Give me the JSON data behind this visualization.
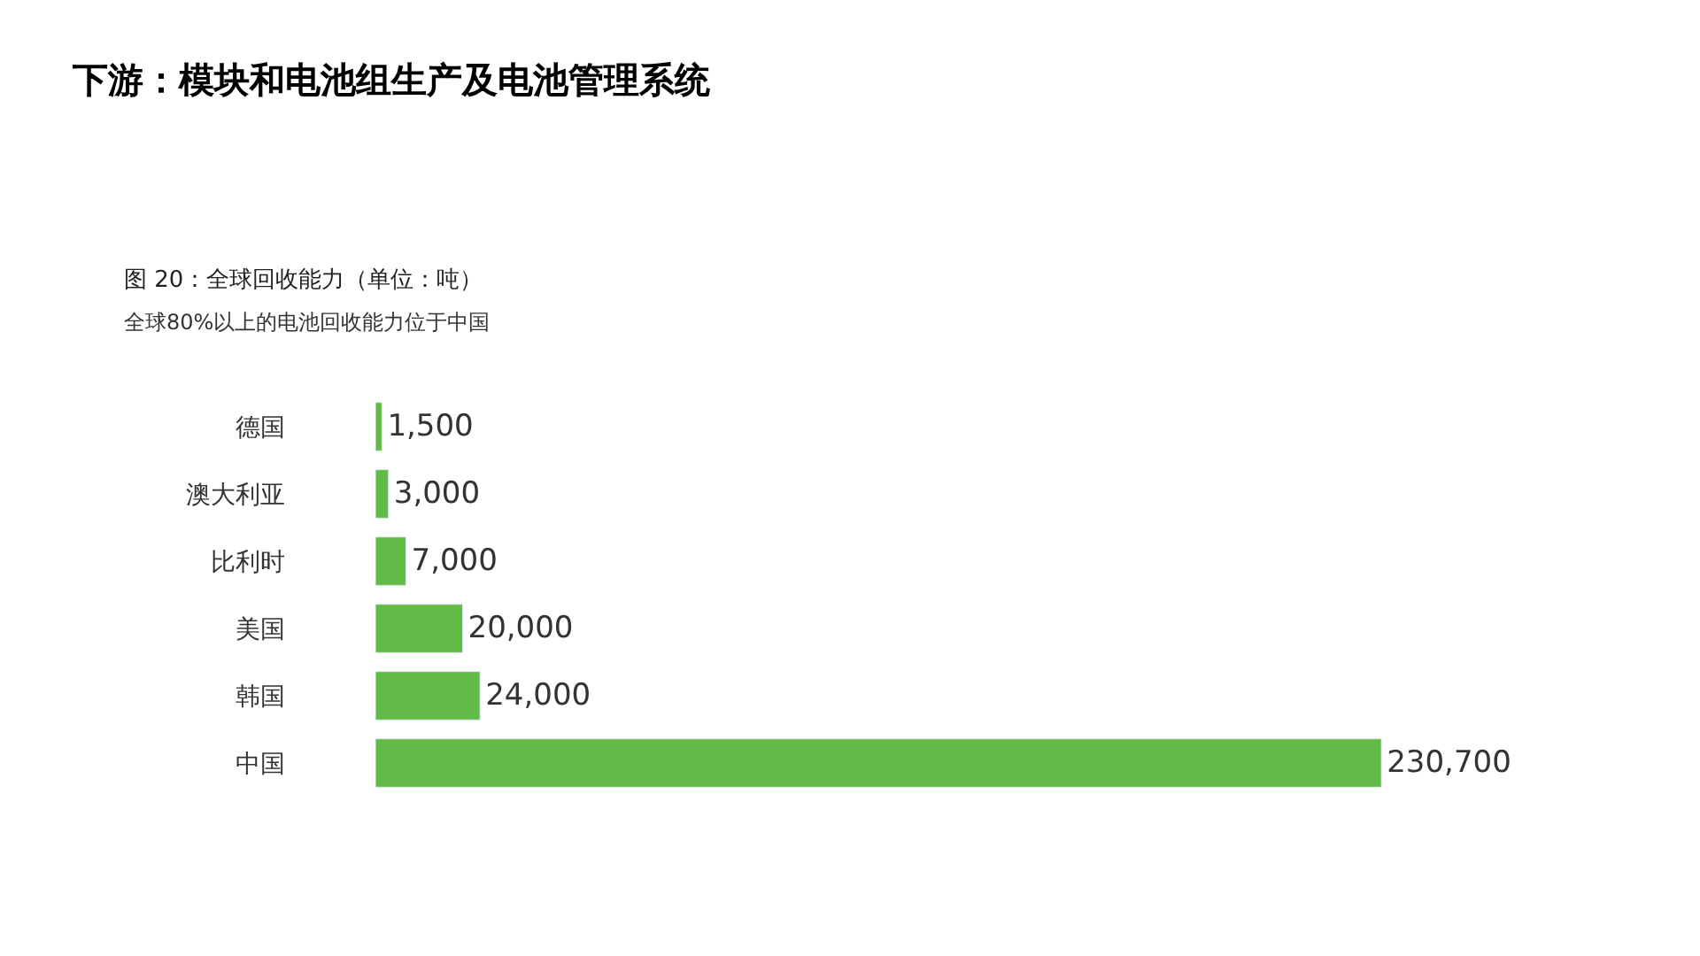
{
  "chart_data": {
    "type": "bar",
    "orientation": "horizontal",
    "title": "下游：模块和电池组生产及电池管理系统",
    "subtitle": "图 20：全球回收能力（单位：吨）",
    "annotations": [
      "全球80%以上的电池回收能力位于中国"
    ],
    "categories": [
      "德国",
      "澳大利亚",
      "比利时",
      "美国",
      "韩国",
      "中国"
    ],
    "values": [
      1500,
      3000,
      7000,
      20000,
      24000,
      230700
    ],
    "value_labels": [
      "1,500",
      "3,000",
      "7,000",
      "20,000",
      "24,000",
      "230,700"
    ],
    "color": "#62bb46"
  }
}
